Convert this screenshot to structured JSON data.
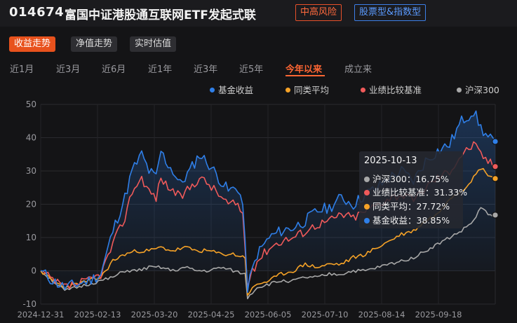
{
  "fund": {
    "code": "014674",
    "name": "富国中证港股通互联网ETF发起式联",
    "risk_tag": "中高风险",
    "type_tag": "股票型&指数型"
  },
  "view_tabs": [
    {
      "label": "收益走势",
      "active": true
    },
    {
      "label": "净值走势",
      "active": false
    },
    {
      "label": "实时估值",
      "active": false
    }
  ],
  "periods": [
    {
      "label": "近1月",
      "active": false
    },
    {
      "label": "近3月",
      "active": false
    },
    {
      "label": "近6月",
      "active": false
    },
    {
      "label": "近1年",
      "active": false
    },
    {
      "label": "近3年",
      "active": false
    },
    {
      "label": "近5年",
      "active": false
    },
    {
      "label": "今年以来",
      "active": true
    },
    {
      "label": "成立来",
      "active": false
    }
  ],
  "colors": {
    "fund": "#2f7fe8",
    "peer": "#f5a227",
    "benchmark": "#f05a5a",
    "hs300": "#a8a8a8",
    "accent": "#e8521d"
  },
  "chart_data": {
    "type": "line",
    "ylim": [
      -10,
      50
    ],
    "yticks": [
      -10,
      0,
      10,
      20,
      30,
      40,
      50
    ],
    "xticks": [
      "2024-12-31",
      "2025-02-13",
      "2025-03-20",
      "2025-04-25",
      "2025-06-05",
      "2025-07-10",
      "2025-08-14",
      "2025-09-18"
    ],
    "grid": true,
    "legend_position": "top-right",
    "n_points": 190,
    "series": [
      {
        "name": "基金收益",
        "key": "fund",
        "anchors": [
          [
            0,
            0
          ],
          [
            5,
            -3
          ],
          [
            10,
            -5
          ],
          [
            15,
            -4
          ],
          [
            20,
            -3
          ],
          [
            25,
            -1
          ],
          [
            30,
            12
          ],
          [
            35,
            22
          ],
          [
            38,
            30
          ],
          [
            42,
            35
          ],
          [
            45,
            30
          ],
          [
            48,
            28
          ],
          [
            50,
            36
          ],
          [
            52,
            33
          ],
          [
            55,
            30
          ],
          [
            58,
            26
          ],
          [
            62,
            30
          ],
          [
            66,
            35
          ],
          [
            70,
            32
          ],
          [
            74,
            28
          ],
          [
            78,
            24
          ],
          [
            82,
            25
          ],
          [
            84,
            20
          ],
          [
            86,
            -5
          ],
          [
            90,
            5
          ],
          [
            95,
            10
          ],
          [
            100,
            12
          ],
          [
            105,
            13
          ],
          [
            110,
            15
          ],
          [
            115,
            18
          ],
          [
            120,
            19
          ],
          [
            125,
            22
          ],
          [
            130,
            20
          ],
          [
            135,
            23
          ],
          [
            140,
            25
          ],
          [
            145,
            28
          ],
          [
            150,
            30
          ],
          [
            155,
            27
          ],
          [
            160,
            33
          ],
          [
            165,
            36
          ],
          [
            170,
            38
          ],
          [
            175,
            45
          ],
          [
            180,
            48
          ],
          [
            183,
            43
          ],
          [
            186,
            40
          ],
          [
            189,
            38.85
          ]
        ]
      },
      {
        "name": "同类平均",
        "key": "peer",
        "anchors": [
          [
            0,
            0
          ],
          [
            5,
            -3
          ],
          [
            10,
            -5
          ],
          [
            15,
            -4
          ],
          [
            20,
            -3
          ],
          [
            25,
            -2
          ],
          [
            30,
            3
          ],
          [
            35,
            5
          ],
          [
            40,
            6
          ],
          [
            45,
            6
          ],
          [
            50,
            7
          ],
          [
            55,
            6
          ],
          [
            60,
            7
          ],
          [
            65,
            6
          ],
          [
            70,
            6
          ],
          [
            75,
            5
          ],
          [
            80,
            5
          ],
          [
            85,
            4
          ],
          [
            86,
            -7
          ],
          [
            90,
            -4
          ],
          [
            95,
            -3
          ],
          [
            100,
            -1
          ],
          [
            105,
            0
          ],
          [
            110,
            2
          ],
          [
            115,
            1
          ],
          [
            120,
            2
          ],
          [
            125,
            2
          ],
          [
            130,
            4
          ],
          [
            135,
            5
          ],
          [
            140,
            7
          ],
          [
            145,
            9
          ],
          [
            150,
            11
          ],
          [
            155,
            12
          ],
          [
            160,
            15
          ],
          [
            165,
            17
          ],
          [
            170,
            22
          ],
          [
            175,
            24
          ],
          [
            180,
            28
          ],
          [
            183,
            31
          ],
          [
            186,
            29
          ],
          [
            189,
            27.72
          ]
        ]
      },
      {
        "name": "业绩比较基准",
        "key": "benchmark",
        "anchors": [
          [
            0,
            0
          ],
          [
            5,
            -3
          ],
          [
            10,
            -5
          ],
          [
            15,
            -4
          ],
          [
            20,
            -3
          ],
          [
            25,
            -1
          ],
          [
            30,
            8
          ],
          [
            35,
            16
          ],
          [
            38,
            24
          ],
          [
            42,
            28
          ],
          [
            45,
            24
          ],
          [
            48,
            22
          ],
          [
            50,
            28
          ],
          [
            52,
            26
          ],
          [
            55,
            24
          ],
          [
            58,
            22
          ],
          [
            62,
            25
          ],
          [
            66,
            28
          ],
          [
            70,
            26
          ],
          [
            74,
            23
          ],
          [
            78,
            20
          ],
          [
            82,
            20
          ],
          [
            84,
            17
          ],
          [
            86,
            -4
          ],
          [
            90,
            3
          ],
          [
            95,
            7
          ],
          [
            100,
            9
          ],
          [
            105,
            10
          ],
          [
            110,
            12
          ],
          [
            115,
            14
          ],
          [
            120,
            15
          ],
          [
            125,
            17
          ],
          [
            130,
            16
          ],
          [
            135,
            18
          ],
          [
            140,
            20
          ],
          [
            145,
            22
          ],
          [
            150,
            23
          ],
          [
            155,
            21
          ],
          [
            160,
            25
          ],
          [
            165,
            28
          ],
          [
            170,
            30
          ],
          [
            175,
            35
          ],
          [
            180,
            38
          ],
          [
            183,
            35
          ],
          [
            186,
            33
          ],
          [
            189,
            31.33
          ]
        ]
      },
      {
        "name": "沪深300",
        "key": "hs300",
        "anchors": [
          [
            0,
            0
          ],
          [
            5,
            -3
          ],
          [
            10,
            -6
          ],
          [
            15,
            -5
          ],
          [
            20,
            -4
          ],
          [
            25,
            -3
          ],
          [
            30,
            -2
          ],
          [
            35,
            0
          ],
          [
            40,
            0
          ],
          [
            45,
            1
          ],
          [
            50,
            1
          ],
          [
            55,
            0
          ],
          [
            60,
            1
          ],
          [
            65,
            0
          ],
          [
            70,
            0
          ],
          [
            75,
            1
          ],
          [
            80,
            0
          ],
          [
            85,
            -1
          ],
          [
            86,
            -8
          ],
          [
            90,
            -5
          ],
          [
            95,
            -4
          ],
          [
            100,
            -3
          ],
          [
            105,
            -3
          ],
          [
            110,
            -2
          ],
          [
            115,
            -2
          ],
          [
            120,
            -1
          ],
          [
            125,
            -1
          ],
          [
            130,
            0
          ],
          [
            135,
            0
          ],
          [
            140,
            1
          ],
          [
            145,
            2
          ],
          [
            150,
            3
          ],
          [
            155,
            4
          ],
          [
            160,
            6
          ],
          [
            165,
            8
          ],
          [
            170,
            10
          ],
          [
            175,
            12
          ],
          [
            180,
            15
          ],
          [
            183,
            19
          ],
          [
            186,
            17
          ],
          [
            189,
            16.75
          ]
        ]
      }
    ]
  },
  "legend": [
    {
      "label": "基金收益",
      "color": "#2f7fe8"
    },
    {
      "label": "同类平均",
      "color": "#f5a227"
    },
    {
      "label": "业绩比较基准",
      "color": "#f05a5a"
    },
    {
      "label": "沪深300",
      "color": "#a8a8a8"
    }
  ],
  "tooltip": {
    "date": "2025-10-13",
    "rows": [
      {
        "label": "沪深300：16.75%",
        "color": "#a8a8a8"
      },
      {
        "label": "业绩比较基准：31.33%",
        "color": "#f05a5a"
      },
      {
        "label": "同类平均：27.72%",
        "color": "#f5a227"
      },
      {
        "label": "基金收益：38.85%",
        "color": "#2f7fe8"
      }
    ]
  }
}
